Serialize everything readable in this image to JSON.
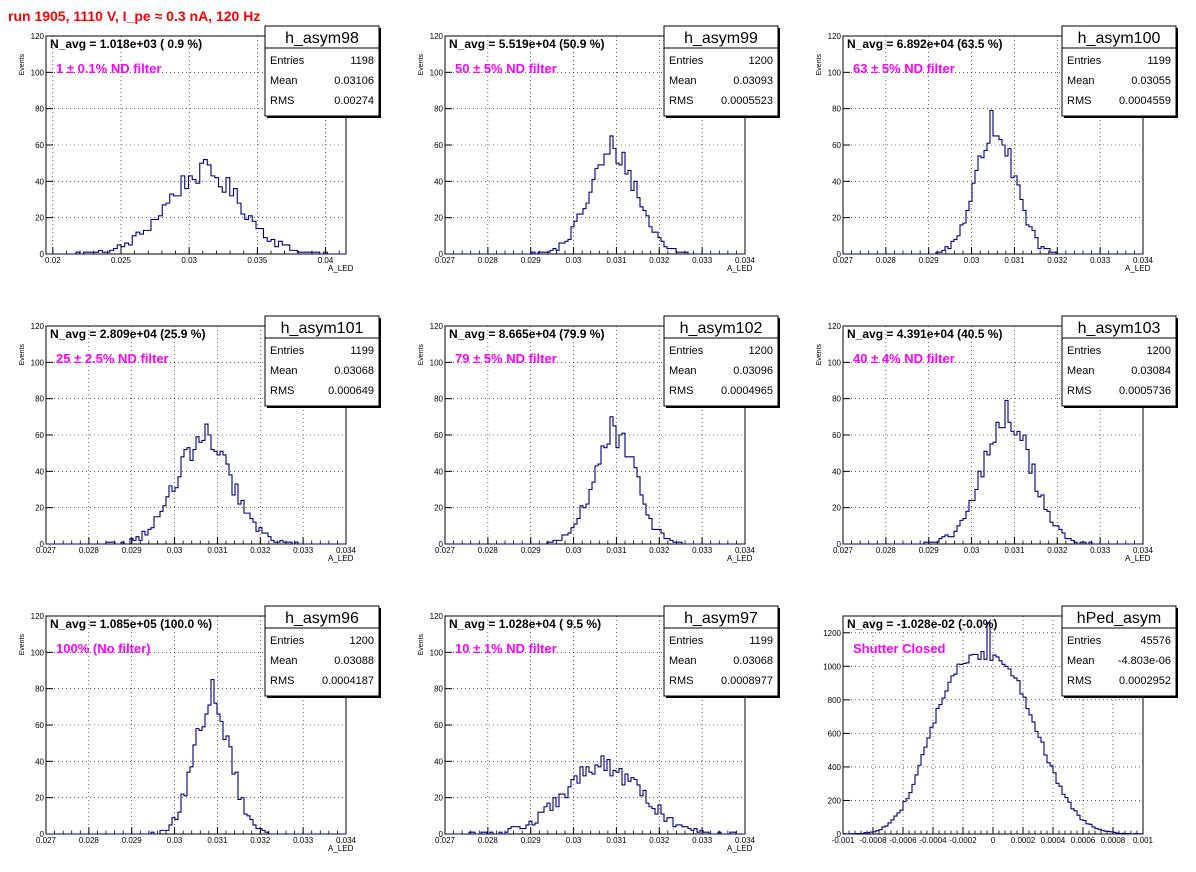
{
  "header": {
    "run_title": "run 1905,  1110 V, I_pe ≈ 0.3 nA, 120 Hz"
  },
  "colors": {
    "run_title": "#ff0000",
    "annotation": "#ff00ff",
    "histogram": "#000080"
  },
  "chart_data": [
    {
      "type": "bar",
      "name": "h_asym98",
      "avg_text": "N_avg = 1.018e+03 ( 0.9 %)",
      "filter_text": "1 ± 0.1% ND filter",
      "stats": [
        [
          "Entries",
          "1198"
        ],
        [
          "Mean",
          "0.03106"
        ],
        [
          "RMS",
          "0.00274"
        ]
      ],
      "xlabel": "A_LED",
      "ylabel": "Events",
      "xlim": [
        0.0195,
        0.0415
      ],
      "ylim": [
        0,
        120
      ],
      "xticks": [
        0.02,
        0.025,
        0.03,
        0.035,
        0.04
      ],
      "xtick_labels": [
        "0.02",
        "0.025",
        "0.03",
        "0.035",
        "0.04"
      ],
      "yticks": [
        0,
        20,
        40,
        60,
        80,
        100,
        120
      ],
      "ytick_labels": [
        "0",
        "20",
        "40",
        "60",
        "80",
        "100",
        "120"
      ],
      "hist": {
        "mean": 0.03106,
        "rms": 0.00274,
        "peak": 52,
        "bins": 80
      }
    },
    {
      "type": "bar",
      "name": "h_asym99",
      "avg_text": "N_avg = 5.519e+04 (50.9 %)",
      "filter_text": "50 ± 5% ND filter",
      "stats": [
        [
          "Entries",
          "1200"
        ],
        [
          "Mean",
          "0.03093"
        ],
        [
          "RMS",
          "0.0005523"
        ]
      ],
      "xlabel": "A_LED",
      "ylabel": "Events",
      "xlim": [
        0.027,
        0.034
      ],
      "ylim": [
        0,
        120
      ],
      "xticks": [
        0.027,
        0.028,
        0.029,
        0.03,
        0.031,
        0.032,
        0.033,
        0.034
      ],
      "xtick_labels": [
        "0.027",
        "0.028",
        "0.029",
        "0.03",
        "0.031",
        "0.032",
        "0.033",
        "0.034"
      ],
      "yticks": [
        0,
        20,
        40,
        60,
        80,
        100,
        120
      ],
      "ytick_labels": [
        "0",
        "20",
        "40",
        "60",
        "80",
        "100",
        "120"
      ],
      "hist": {
        "mean": 0.03093,
        "rms": 0.0005523,
        "peak": 65,
        "bins": 100
      }
    },
    {
      "type": "bar",
      "name": "h_asym100",
      "avg_text": "N_avg = 6.892e+04 (63.5 %)",
      "filter_text": "63 ± 5% ND filter",
      "stats": [
        [
          "Entries",
          "1199"
        ],
        [
          "Mean",
          "0.03055"
        ],
        [
          "RMS",
          "0.0004559"
        ]
      ],
      "xlabel": "A_LED",
      "ylabel": "Events",
      "xlim": [
        0.027,
        0.034
      ],
      "ylim": [
        0,
        120
      ],
      "xticks": [
        0.027,
        0.028,
        0.029,
        0.03,
        0.031,
        0.032,
        0.033,
        0.034
      ],
      "xtick_labels": [
        "0.027",
        "0.028",
        "0.029",
        "0.03",
        "0.031",
        "0.032",
        "0.033",
        "0.034"
      ],
      "yticks": [
        0,
        20,
        40,
        60,
        80,
        100,
        120
      ],
      "ytick_labels": [
        "0",
        "20",
        "40",
        "60",
        "80",
        "100",
        "120"
      ],
      "hist": {
        "mean": 0.03055,
        "rms": 0.0004559,
        "peak": 79,
        "bins": 100
      }
    },
    {
      "type": "bar",
      "name": "h_asym101",
      "avg_text": "N_avg = 2.809e+04 (25.9 %)",
      "filter_text": "25 ± 2.5% ND filter",
      "stats": [
        [
          "Entries",
          "1199"
        ],
        [
          "Mean",
          "0.03068"
        ],
        [
          "RMS",
          "0.000649"
        ]
      ],
      "xlabel": "A_LED",
      "ylabel": "Events",
      "xlim": [
        0.027,
        0.034
      ],
      "ylim": [
        0,
        120
      ],
      "xticks": [
        0.027,
        0.028,
        0.029,
        0.03,
        0.031,
        0.032,
        0.033,
        0.034
      ],
      "xtick_labels": [
        "0.027",
        "0.028",
        "0.029",
        "0.03",
        "0.031",
        "0.032",
        "0.033",
        "0.034"
      ],
      "yticks": [
        0,
        20,
        40,
        60,
        80,
        100,
        120
      ],
      "ytick_labels": [
        "0",
        "20",
        "40",
        "60",
        "80",
        "100",
        "120"
      ],
      "hist": {
        "mean": 0.03068,
        "rms": 0.000649,
        "peak": 66,
        "bins": 100
      }
    },
    {
      "type": "bar",
      "name": "h_asym102",
      "avg_text": "N_avg = 8.665e+04 (79.9 %)",
      "filter_text": "79 ± 5% ND filter",
      "stats": [
        [
          "Entries",
          "1200"
        ],
        [
          "Mean",
          "0.03096"
        ],
        [
          "RMS",
          "0.0004965"
        ]
      ],
      "xlabel": "A_LED",
      "ylabel": "Events",
      "xlim": [
        0.027,
        0.034
      ],
      "ylim": [
        0,
        120
      ],
      "xticks": [
        0.027,
        0.028,
        0.029,
        0.03,
        0.031,
        0.032,
        0.033,
        0.034
      ],
      "xtick_labels": [
        "0.027",
        "0.028",
        "0.029",
        "0.03",
        "0.031",
        "0.032",
        "0.033",
        "0.034"
      ],
      "yticks": [
        0,
        20,
        40,
        60,
        80,
        100,
        120
      ],
      "ytick_labels": [
        "0",
        "20",
        "40",
        "60",
        "80",
        "100",
        "120"
      ],
      "hist": {
        "mean": 0.03096,
        "rms": 0.0004965,
        "peak": 70,
        "bins": 100
      }
    },
    {
      "type": "bar",
      "name": "h_asym103",
      "avg_text": "N_avg = 4.391e+04 (40.5 %)",
      "filter_text": "40 ± 4% ND filter",
      "stats": [
        [
          "Entries",
          "1200"
        ],
        [
          "Mean",
          "0.03084"
        ],
        [
          "RMS",
          "0.0005736"
        ]
      ],
      "xlabel": "A_LED",
      "ylabel": "Events",
      "xlim": [
        0.027,
        0.034
      ],
      "ylim": [
        0,
        120
      ],
      "xticks": [
        0.027,
        0.028,
        0.029,
        0.03,
        0.031,
        0.032,
        0.033,
        0.034
      ],
      "xtick_labels": [
        "0.027",
        "0.028",
        "0.029",
        "0.03",
        "0.031",
        "0.032",
        "0.033",
        "0.034"
      ],
      "yticks": [
        0,
        20,
        40,
        60,
        80,
        100,
        120
      ],
      "ytick_labels": [
        "0",
        "20",
        "40",
        "60",
        "80",
        "100",
        "120"
      ],
      "hist": {
        "mean": 0.03084,
        "rms": 0.0005736,
        "peak": 79,
        "bins": 100
      }
    },
    {
      "type": "bar",
      "name": "h_asym96",
      "avg_text": "N_avg = 1.085e+05 (100.0 %)",
      "filter_text": "100% (No filter)",
      "stats": [
        [
          "Entries",
          "1200"
        ],
        [
          "Mean",
          "0.03088"
        ],
        [
          "RMS",
          "0.0004187"
        ]
      ],
      "xlabel": "A_LED",
      "ylabel": "Events",
      "xlim": [
        0.027,
        0.034
      ],
      "ylim": [
        0,
        120
      ],
      "xticks": [
        0.027,
        0.028,
        0.029,
        0.03,
        0.031,
        0.032,
        0.033,
        0.034
      ],
      "xtick_labels": [
        "0.027",
        "0.028",
        "0.029",
        "0.03",
        "0.031",
        "0.032",
        "0.033",
        "0.034"
      ],
      "yticks": [
        0,
        20,
        40,
        60,
        80,
        100,
        120
      ],
      "ytick_labels": [
        "0",
        "20",
        "40",
        "60",
        "80",
        "100",
        "120"
      ],
      "hist": {
        "mean": 0.03088,
        "rms": 0.0004187,
        "peak": 85,
        "bins": 100
      }
    },
    {
      "type": "bar",
      "name": "h_asym97",
      "avg_text": "N_avg = 1.028e+04 ( 9.5 %)",
      "filter_text": "10 ± 1% ND filter",
      "stats": [
        [
          "Entries",
          "1199"
        ],
        [
          "Mean",
          "0.03068"
        ],
        [
          "RMS",
          "0.0008977"
        ]
      ],
      "xlabel": "A_LED",
      "ylabel": "Events",
      "xlim": [
        0.027,
        0.034
      ],
      "ylim": [
        0,
        120
      ],
      "xticks": [
        0.027,
        0.028,
        0.029,
        0.03,
        0.031,
        0.032,
        0.033,
        0.034
      ],
      "xtick_labels": [
        "0.027",
        "0.028",
        "0.029",
        "0.03",
        "0.031",
        "0.032",
        "0.033",
        "0.034"
      ],
      "yticks": [
        0,
        20,
        40,
        60,
        80,
        100,
        120
      ],
      "ytick_labels": [
        "0",
        "20",
        "40",
        "60",
        "80",
        "100",
        "120"
      ],
      "hist": {
        "mean": 0.03068,
        "rms": 0.0008977,
        "peak": 43,
        "bins": 100
      }
    },
    {
      "type": "bar",
      "name": "hPed_asym",
      "avg_text": "N_avg = -1.028e-02 (-0.0%)",
      "filter_text": "Shutter Closed",
      "stats": [
        [
          "Entries",
          "45576"
        ],
        [
          "Mean",
          "-4.803e-06"
        ],
        [
          "RMS",
          "0.0002952"
        ]
      ],
      "xlabel": "",
      "ylabel": "",
      "xlim": [
        -0.001,
        0.001
      ],
      "ylim": [
        0,
        1300
      ],
      "xticks": [
        -0.001,
        -0.0008,
        -0.0006,
        -0.0004,
        -0.0002,
        0,
        0.0002,
        0.0004,
        0.0006,
        0.0008,
        0.001
      ],
      "xtick_labels": [
        "-0.001",
        "-0.0008",
        "-0.0006",
        "-0.0004",
        "-0.0002",
        "0",
        "0.0002",
        "0.0004",
        "0.0006",
        "0.0008",
        "0.001"
      ],
      "yticks": [
        0,
        200,
        400,
        600,
        800,
        1000,
        1200
      ],
      "ytick_labels": [
        "0",
        "200",
        "400",
        "600",
        "800",
        "1000",
        "1200"
      ],
      "hist": {
        "mean": 0.0,
        "rms": 0.0002952,
        "peak": 1260,
        "bins": 100,
        "shoulder": true
      }
    }
  ]
}
